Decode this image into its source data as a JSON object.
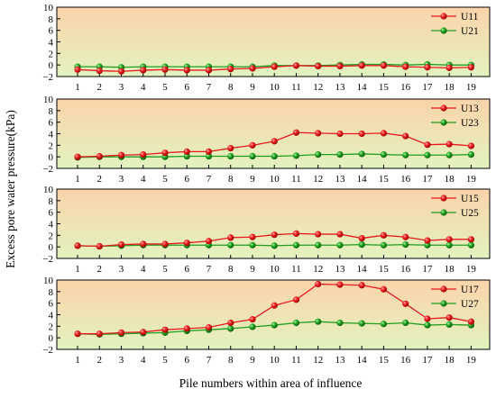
{
  "chart_data": {
    "type": "line",
    "ylabel": "Excess pore water pressure(kPa)",
    "xlabel": "Pile numbers within area of influence",
    "x": [
      1,
      2,
      3,
      4,
      5,
      6,
      7,
      8,
      9,
      10,
      11,
      12,
      13,
      14,
      15,
      16,
      17,
      18,
      19
    ],
    "ylim": [
      -2,
      10
    ],
    "yticks": [
      -2,
      0,
      2,
      4,
      6,
      8,
      10
    ],
    "grid": false,
    "legend_position": "top-right",
    "colors": {
      "red": "#e8181e",
      "green": "#1f9e1f",
      "bg_top": "#fcd3ab",
      "bg_bottom": "#e2f3bf"
    },
    "panels": [
      {
        "series": [
          {
            "name": "U11",
            "color": "red",
            "values": [
              -0.8,
              -1.0,
              -1.1,
              -0.9,
              -0.8,
              -0.9,
              -0.9,
              -0.7,
              -0.6,
              -0.3,
              -0.1,
              -0.2,
              -0.2,
              -0.1,
              -0.1,
              -0.3,
              -0.4,
              -0.5,
              -0.4
            ]
          },
          {
            "name": "U21",
            "color": "green",
            "values": [
              -0.3,
              -0.3,
              -0.4,
              -0.3,
              -0.3,
              -0.3,
              -0.3,
              -0.3,
              -0.3,
              -0.1,
              -0.1,
              -0.1,
              0.0,
              0.1,
              0.1,
              0.0,
              0.1,
              0.0,
              0.0
            ]
          }
        ]
      },
      {
        "series": [
          {
            "name": "U13",
            "color": "red",
            "values": [
              0.0,
              0.1,
              0.3,
              0.4,
              0.7,
              0.9,
              0.9,
              1.5,
              2.0,
              2.7,
              4.2,
              4.1,
              4.0,
              4.0,
              4.1,
              3.6,
              2.1,
              2.2,
              1.9
            ]
          },
          {
            "name": "U23",
            "color": "green",
            "values": [
              -0.1,
              0.0,
              0.0,
              0.0,
              0.0,
              0.1,
              0.1,
              0.1,
              0.1,
              0.1,
              0.2,
              0.4,
              0.4,
              0.5,
              0.4,
              0.3,
              0.3,
              0.3,
              0.4
            ]
          }
        ]
      },
      {
        "series": [
          {
            "name": "U15",
            "color": "red",
            "values": [
              0.2,
              0.1,
              0.4,
              0.5,
              0.5,
              0.7,
              1.0,
              1.6,
              1.7,
              2.1,
              2.3,
              2.2,
              2.2,
              1.5,
              2.0,
              1.7,
              1.1,
              1.3,
              1.3
            ]
          },
          {
            "name": "U25",
            "color": "green",
            "values": [
              0.2,
              0.1,
              0.2,
              0.3,
              0.3,
              0.3,
              0.3,
              0.3,
              0.3,
              0.2,
              0.3,
              0.3,
              0.3,
              0.4,
              0.3,
              0.4,
              0.3,
              0.3,
              0.3
            ]
          }
        ]
      },
      {
        "series": [
          {
            "name": "U17",
            "color": "red",
            "values": [
              0.7,
              0.7,
              0.9,
              1.0,
              1.4,
              1.6,
              1.8,
              2.6,
              3.2,
              5.6,
              6.6,
              9.3,
              9.2,
              9.1,
              8.4,
              5.9,
              3.3,
              3.5,
              2.8
            ]
          },
          {
            "name": "U27",
            "color": "green",
            "values": [
              0.7,
              0.6,
              0.7,
              0.8,
              0.9,
              1.2,
              1.4,
              1.6,
              1.9,
              2.2,
              2.6,
              2.8,
              2.6,
              2.5,
              2.4,
              2.6,
              2.2,
              2.3,
              2.2
            ]
          }
        ]
      }
    ]
  }
}
